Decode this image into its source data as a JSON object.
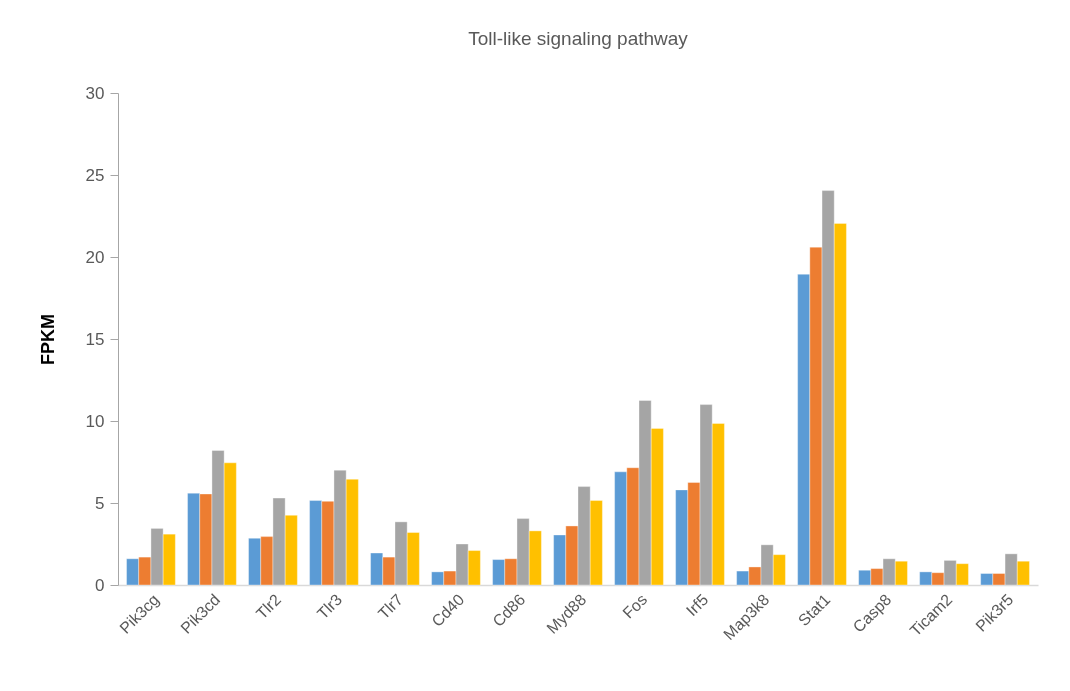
{
  "chart_data": {
    "type": "bar",
    "title": "Toll-like signaling pathway",
    "ylabel": "FPKM",
    "categories": [
      "Pik3cg",
      "Pik3cd",
      "Tlr2",
      "Tlr3",
      "Tlr7",
      "Cd40",
      "Cd86",
      "Myd88",
      "Fos",
      "Irf5",
      "Map3k8",
      "Stat1",
      "Casp8",
      "Ticam2",
      "Pik3r5"
    ],
    "series": [
      {
        "color": "#5b9bd5",
        "values": [
          1.6,
          5.6,
          2.85,
          5.15,
          1.95,
          0.8,
          1.55,
          3.05,
          6.9,
          5.8,
          0.85,
          18.95,
          0.9,
          0.8,
          0.7
        ]
      },
      {
        "color": "#ed7d31",
        "values": [
          1.7,
          5.55,
          2.95,
          5.1,
          1.7,
          0.85,
          1.6,
          3.6,
          7.15,
          6.25,
          1.1,
          20.6,
          1.0,
          0.75,
          0.7
        ]
      },
      {
        "color": "#a5a5a5",
        "values": [
          3.45,
          8.2,
          5.3,
          7.0,
          3.85,
          2.5,
          4.05,
          6.0,
          11.25,
          11.0,
          2.45,
          24.05,
          1.6,
          1.5,
          1.9
        ]
      },
      {
        "color": "#ffc000",
        "values": [
          3.1,
          7.45,
          4.25,
          6.45,
          3.2,
          2.1,
          3.3,
          5.15,
          9.55,
          9.85,
          1.85,
          22.05,
          1.45,
          1.3,
          1.45
        ]
      }
    ],
    "ylim": [
      0,
      30
    ],
    "yticks": [
      0,
      5,
      10,
      15,
      20,
      25,
      30
    ],
    "grid": false
  }
}
